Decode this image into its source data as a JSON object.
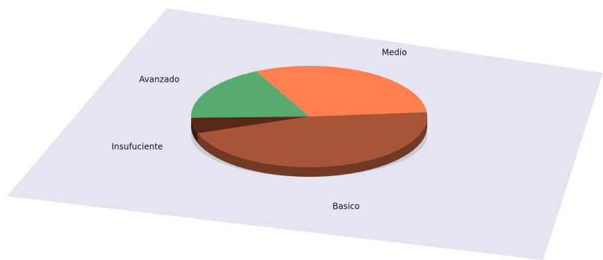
{
  "chart_data": {
    "type": "pie",
    "title": "",
    "labels": [
      "Basico",
      "Insufuciente",
      "Avanzado",
      "Medio"
    ],
    "values": [
      46,
      5,
      18,
      31
    ],
    "colors": {
      "Basico": "#a85436",
      "Insufuciente": "#5a2818",
      "Avanzado": "#55ab70",
      "Medio": "#ff7f50"
    },
    "background_plane": "#e4e4f0",
    "legend": "none",
    "style": "3d-perspective"
  }
}
